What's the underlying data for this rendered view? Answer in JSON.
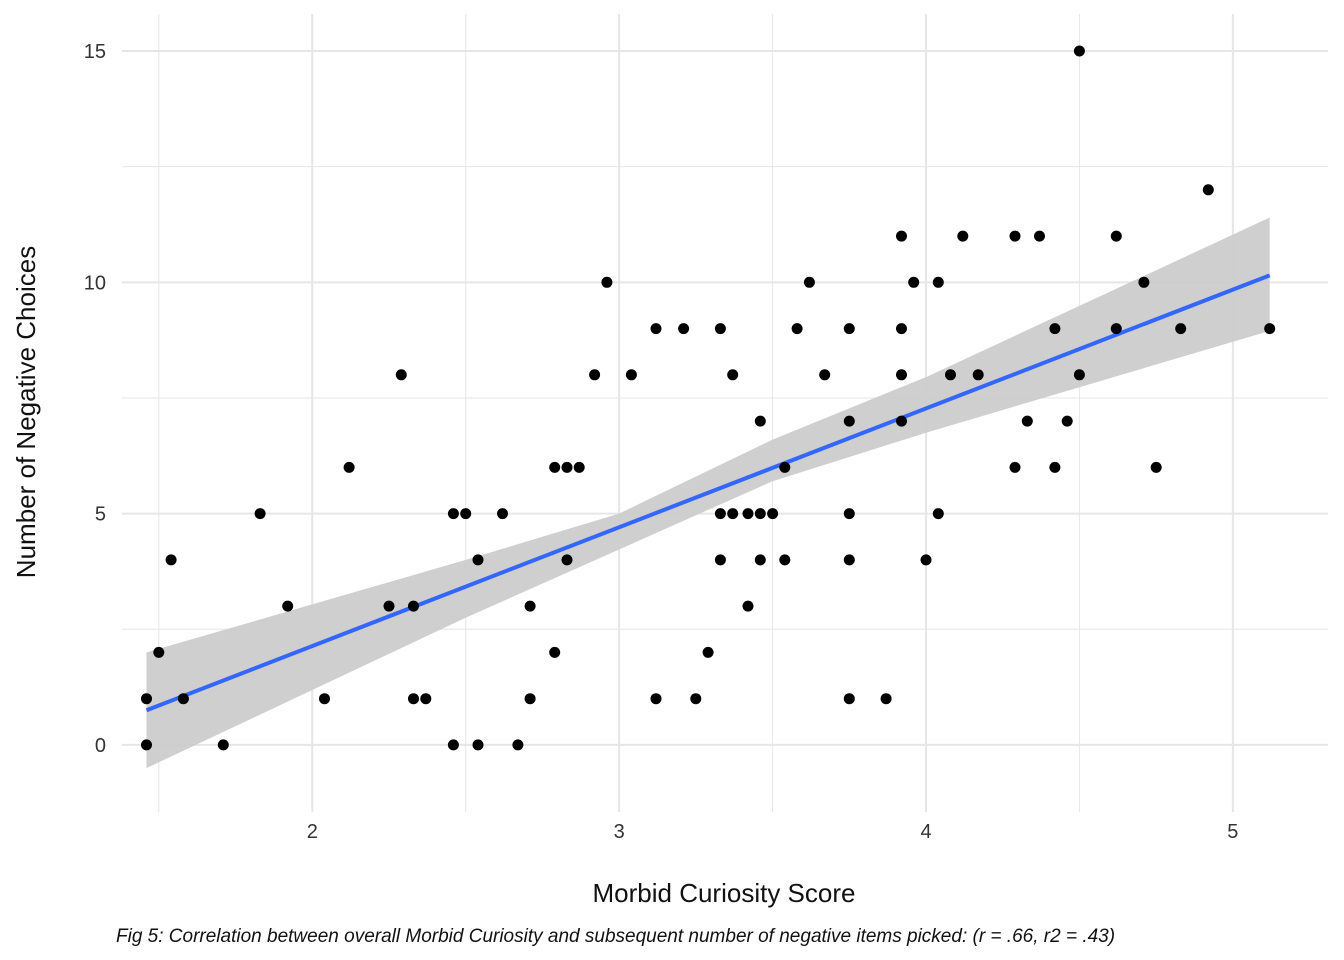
{
  "chart_data": {
    "type": "scatter",
    "title": "",
    "xlabel": "Morbid Curiosity Score",
    "ylabel": "Number of Negative Choices",
    "caption": "Fig 5: Correlation between overall Morbid Curiosity and subsequent number of negative items picked: (r = .66, r2 = .43)",
    "xlim": [
      1.38,
      5.31
    ],
    "ylim": [
      -1.45,
      15.8
    ],
    "x_ticks": [
      2,
      3,
      4,
      5
    ],
    "y_ticks": [
      0,
      5,
      10,
      15
    ],
    "grid": true,
    "legend": "none",
    "colors": {
      "points": "#000000",
      "fit_line": "#3366FF",
      "confidence_band": "#cccccc",
      "grid": "#e6e6e6",
      "background": "#ffffff"
    },
    "fit": {
      "method": "linear regression",
      "x_range": [
        1.46,
        5.12
      ],
      "line": [
        [
          1.46,
          0.75
        ],
        [
          5.12,
          10.15
        ]
      ],
      "band_lower": [
        [
          1.46,
          -0.5
        ],
        [
          2.5,
          2.75
        ],
        [
          3.5,
          5.7
        ],
        [
          4.0,
          6.75
        ],
        [
          5.12,
          8.95
        ]
      ],
      "band_upper": [
        [
          1.46,
          2.0
        ],
        [
          2.5,
          4.0
        ],
        [
          3.0,
          5.0
        ],
        [
          3.5,
          6.6
        ],
        [
          4.0,
          7.95
        ],
        [
          5.12,
          11.4
        ]
      ]
    },
    "points": [
      [
        1.46,
        1
      ],
      [
        1.46,
        0
      ],
      [
        1.5,
        2
      ],
      [
        1.54,
        4
      ],
      [
        1.58,
        1
      ],
      [
        1.71,
        0
      ],
      [
        1.83,
        5
      ],
      [
        1.92,
        3
      ],
      [
        2.04,
        1
      ],
      [
        2.12,
        6
      ],
      [
        2.25,
        3
      ],
      [
        2.29,
        8
      ],
      [
        2.33,
        3
      ],
      [
        2.33,
        1
      ],
      [
        2.37,
        1
      ],
      [
        2.46,
        5
      ],
      [
        2.5,
        5
      ],
      [
        2.46,
        0
      ],
      [
        2.54,
        4
      ],
      [
        2.54,
        0
      ],
      [
        2.62,
        5
      ],
      [
        2.67,
        0
      ],
      [
        2.71,
        3
      ],
      [
        2.71,
        1
      ],
      [
        2.79,
        6
      ],
      [
        2.79,
        2
      ],
      [
        2.83,
        6
      ],
      [
        2.83,
        4
      ],
      [
        2.87,
        6
      ],
      [
        2.92,
        8
      ],
      [
        2.96,
        10
      ],
      [
        3.04,
        8
      ],
      [
        3.12,
        9
      ],
      [
        3.12,
        1
      ],
      [
        3.21,
        9
      ],
      [
        3.25,
        1
      ],
      [
        3.29,
        2
      ],
      [
        3.33,
        9
      ],
      [
        3.33,
        5
      ],
      [
        3.33,
        4
      ],
      [
        3.37,
        8
      ],
      [
        3.37,
        5
      ],
      [
        3.42,
        5
      ],
      [
        3.42,
        3
      ],
      [
        3.46,
        7
      ],
      [
        3.46,
        5
      ],
      [
        3.46,
        4
      ],
      [
        3.5,
        5
      ],
      [
        3.54,
        6
      ],
      [
        3.54,
        4
      ],
      [
        3.58,
        9
      ],
      [
        3.62,
        10
      ],
      [
        3.67,
        8
      ],
      [
        3.75,
        9
      ],
      [
        3.75,
        7
      ],
      [
        3.75,
        5
      ],
      [
        3.75,
        4
      ],
      [
        3.75,
        1
      ],
      [
        3.87,
        1
      ],
      [
        3.92,
        11
      ],
      [
        3.92,
        9
      ],
      [
        3.92,
        8
      ],
      [
        3.92,
        7
      ],
      [
        3.96,
        10
      ],
      [
        4.0,
        4
      ],
      [
        4.04,
        10
      ],
      [
        4.04,
        5
      ],
      [
        4.08,
        8
      ],
      [
        4.12,
        11
      ],
      [
        4.17,
        8
      ],
      [
        4.29,
        11
      ],
      [
        4.29,
        6
      ],
      [
        4.33,
        7
      ],
      [
        4.37,
        11
      ],
      [
        4.42,
        9
      ],
      [
        4.42,
        6
      ],
      [
        4.46,
        7
      ],
      [
        4.5,
        15
      ],
      [
        4.5,
        8
      ],
      [
        4.62,
        11
      ],
      [
        4.62,
        9
      ],
      [
        4.71,
        10
      ],
      [
        4.75,
        6
      ],
      [
        4.83,
        9
      ],
      [
        4.92,
        12
      ],
      [
        5.12,
        9
      ]
    ]
  }
}
